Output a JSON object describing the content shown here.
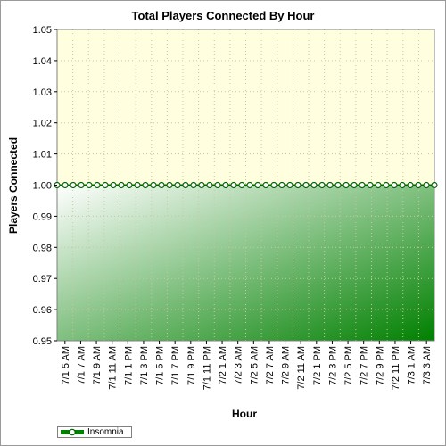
{
  "chart_data": {
    "type": "area",
    "title": "Total Players Connected By Hour",
    "xlabel": "Hour",
    "ylabel": "Players Connected",
    "ylim": [
      0.95,
      1.05
    ],
    "y_ticks": [
      "0.95",
      "0.96",
      "0.97",
      "0.98",
      "0.99",
      "1.00",
      "1.01",
      "1.02",
      "1.03",
      "1.04",
      "1.05"
    ],
    "x_tick_labels": [
      "7/1 5 AM",
      "7/1 7 AM",
      "7/1 9 AM",
      "7/1 11 AM",
      "7/1 1 PM",
      "7/1 3 PM",
      "7/1 5 PM",
      "7/1 7 PM",
      "7/1 9 PM",
      "7/1 11 PM",
      "7/2 1 AM",
      "7/2 3 AM",
      "7/2 5 AM",
      "7/2 7 AM",
      "7/2 9 AM",
      "7/2 11 AM",
      "7/2 1 PM",
      "7/2 3 PM",
      "7/2 5 PM",
      "7/2 7 PM",
      "7/2 9 PM",
      "7/2 11 PM",
      "7/3 1 AM",
      "7/3 3 AM"
    ],
    "series": [
      {
        "name": "Insomnia",
        "color": "#008000",
        "marker": "circle",
        "values": [
          1,
          1,
          1,
          1,
          1,
          1,
          1,
          1,
          1,
          1,
          1,
          1,
          1,
          1,
          1,
          1,
          1,
          1,
          1,
          1,
          1,
          1,
          1,
          1,
          1,
          1,
          1,
          1,
          1,
          1,
          1,
          1,
          1,
          1,
          1,
          1,
          1,
          1,
          1,
          1,
          1,
          1,
          1,
          1,
          1,
          1,
          1,
          1
        ]
      }
    ],
    "grid": true,
    "legend_position": "bottom-left",
    "colors": {
      "plot_background": "#ffffe0",
      "area_fill_dark": "#008000",
      "area_fill_light": "#ffffff",
      "grid": "#c8c8a0"
    }
  }
}
